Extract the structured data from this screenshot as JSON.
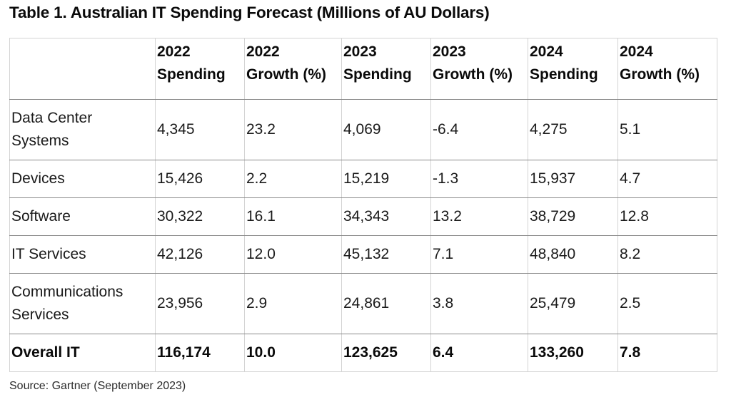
{
  "title": "Table 1. Australian IT Spending Forecast (Millions of AU Dollars)",
  "table": {
    "headers": [
      {
        "line1": "",
        "line2": ""
      },
      {
        "line1": "2022",
        "line2": "Spending"
      },
      {
        "line1": "2022",
        "line2": "Growth (%)"
      },
      {
        "line1": "2023",
        "line2": "Spending"
      },
      {
        "line1": "2023",
        "line2": "Growth (%)"
      },
      {
        "line1": "2024",
        "line2": "Spending"
      },
      {
        "line1": "2024",
        "line2": "Growth (%)"
      }
    ],
    "rows": [
      {
        "label_line1": "Data Center",
        "label_line2": "Systems",
        "cells": [
          "4,345",
          "23.2",
          "4,069",
          "-6.4",
          "4,275",
          "5.1"
        ]
      },
      {
        "label_line1": "Devices",
        "label_line2": "",
        "cells": [
          "15,426",
          "2.2",
          "15,219",
          "-1.3",
          "15,937",
          "4.7"
        ]
      },
      {
        "label_line1": "Software",
        "label_line2": "",
        "cells": [
          "30,322",
          "16.1",
          "34,343",
          "13.2",
          "38,729",
          "12.8"
        ]
      },
      {
        "label_line1": "IT Services",
        "label_line2": "",
        "cells": [
          "42,126",
          "12.0",
          "45,132",
          "7.1",
          "48,840",
          "8.2"
        ]
      },
      {
        "label_line1": "Communications",
        "label_line2": "Services",
        "cells": [
          "23,956",
          "2.9",
          "24,861",
          "3.8",
          "25,479",
          "2.5"
        ]
      },
      {
        "label_line1": "Overall IT",
        "label_line2": "",
        "cells": [
          "116,174",
          "10.0",
          "123,625",
          "6.4",
          "133,260",
          "7.8"
        ]
      }
    ]
  },
  "source": "Source: Gartner (September 2023)"
}
